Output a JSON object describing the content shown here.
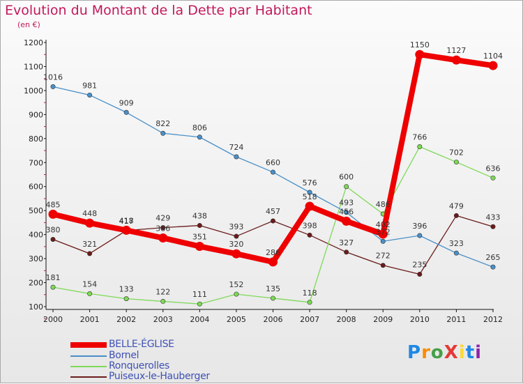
{
  "title": "Evolution du Montant de la Dette par Habitant",
  "subtitle": "(en €)",
  "logo": {
    "text": "ProXiti",
    "letters": [
      {
        "ch": "P",
        "color": "#1e88e5"
      },
      {
        "ch": "r",
        "color": "#fb8c00"
      },
      {
        "ch": "o",
        "color": "#43a047"
      },
      {
        "ch": "X",
        "color": "#e53935"
      },
      {
        "ch": "i",
        "color": "#fdd835"
      },
      {
        "ch": "t",
        "color": "#1e88e5"
      },
      {
        "ch": "i",
        "color": "#8e24aa"
      }
    ]
  },
  "chart_data": {
    "type": "line",
    "title": "Evolution du Montant de la Dette par Habitant",
    "ylabel": "(en €)",
    "x": [
      "2000",
      "2001",
      "2002",
      "2003",
      "2004",
      "2005",
      "2006",
      "2007",
      "2008",
      "2009",
      "2010",
      "2011",
      "2012"
    ],
    "yticks": [
      100,
      200,
      300,
      400,
      500,
      600,
      700,
      800,
      900,
      1000,
      1100,
      1200
    ],
    "ylim": [
      100,
      1200
    ],
    "grid": false,
    "legend": "bottom-left",
    "series": [
      {
        "name": "Puiseux-le-Hauberger",
        "color": "#6b1b1b",
        "values": [
          380,
          321,
          417,
          429,
          438,
          393,
          457,
          398,
          327,
          272,
          235,
          479,
          433
        ],
        "labels": [
          "380",
          "321",
          "417",
          "429",
          "438",
          "393",
          "457",
          "398",
          "327",
          "272",
          "235",
          "479",
          "433"
        ]
      },
      {
        "name": "Ronquerolles",
        "color": "#7ed957",
        "values": [
          181,
          154,
          133,
          122,
          111,
          152,
          135,
          118,
          600,
          486,
          766,
          702,
          636
        ],
        "labels": [
          "181",
          "154",
          "133",
          "122",
          "111",
          "152",
          "135",
          "118",
          "600",
          "486",
          "766",
          "702",
          "636"
        ]
      },
      {
        "name": "Bornel",
        "color": "#4a90c8",
        "values": [
          1016,
          981,
          909,
          822,
          806,
          724,
          660,
          576,
          493,
          372,
          396,
          323,
          265
        ],
        "labels": [
          "1016",
          "981",
          "909",
          "822",
          "806",
          "724",
          "660",
          "576",
          "493",
          "372",
          "396",
          "323",
          "265"
        ]
      },
      {
        "name": "BELLE-ÉGLISE",
        "color": "#ee0000",
        "values": [
          485,
          448,
          418,
          386,
          351,
          320,
          286,
          518,
          456,
          402,
          1150,
          1127,
          1104
        ],
        "labels": [
          "485",
          "448",
          "418",
          "386",
          "351",
          "320",
          "286",
          "518",
          "456",
          "402",
          "1150",
          "1127",
          "1104"
        ]
      }
    ],
    "legend_order": [
      "BELLE-ÉGLISE",
      "Bornel",
      "Ronquerolles",
      "Puiseux-le-Hauberger"
    ]
  }
}
